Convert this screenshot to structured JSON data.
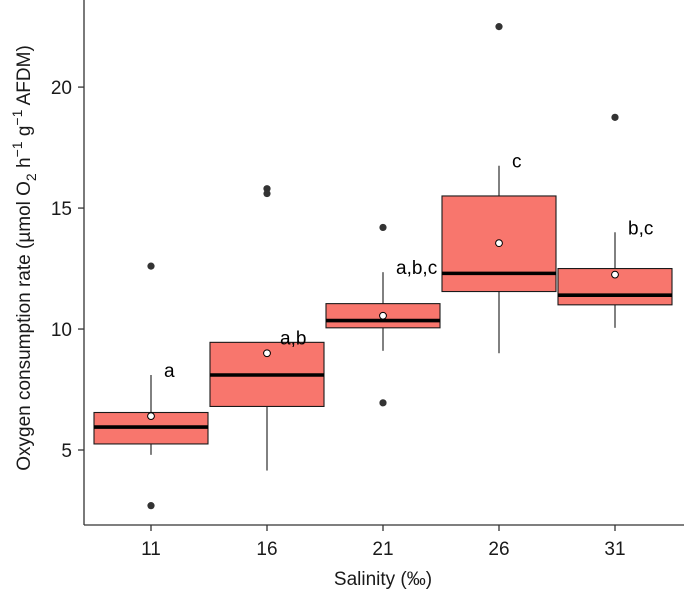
{
  "chart_data": {
    "type": "box",
    "xlabel": "Salinity (‰)",
    "ylabel_main": "Oxygen consumption rate (µmol O",
    "ylabel_sub1": "2",
    "ylabel_mid": " h",
    "ylabel_sup1": "−1",
    "ylabel_mid2": " g",
    "ylabel_sup2": "−1",
    "ylabel_end": " AFDM)",
    "categories": [
      "11",
      "16",
      "21",
      "26",
      "31"
    ],
    "ylim": [
      1.9,
      23.6
    ],
    "yticks": [
      5,
      10,
      15,
      20
    ],
    "ytick_labels": [
      "5",
      "10",
      "15",
      "20"
    ],
    "grid": false,
    "colors": {
      "box_fill": "#F8766D",
      "box_stroke": "#1a1a1a",
      "median": "#000000",
      "outlier": "#333333",
      "mean_fill": "#ffffff"
    },
    "boxes": [
      {
        "category": "11",
        "whisker_low": 4.8,
        "q1": 5.25,
        "median": 5.95,
        "q3": 6.55,
        "whisker_high": 8.1,
        "mean": 6.4,
        "outliers": [
          12.6,
          2.7
        ],
        "label": "a"
      },
      {
        "category": "16",
        "whisker_low": 4.15,
        "q1": 6.8,
        "median": 8.1,
        "q3": 9.45,
        "whisker_high": 9.45,
        "mean": 9.0,
        "outliers": [
          15.8,
          15.6
        ],
        "label": "a,b"
      },
      {
        "category": "21",
        "whisker_low": 9.1,
        "q1": 10.05,
        "median": 10.35,
        "q3": 11.05,
        "whisker_high": 12.35,
        "mean": 10.55,
        "outliers": [
          14.2,
          6.95
        ],
        "label": "a,b,c"
      },
      {
        "category": "26",
        "whisker_low": 9.0,
        "q1": 11.55,
        "median": 12.3,
        "q3": 15.5,
        "whisker_high": 16.75,
        "mean": 13.55,
        "outliers": [
          22.5
        ],
        "label": "c"
      },
      {
        "category": "31",
        "whisker_low": 10.05,
        "q1": 11.0,
        "median": 11.4,
        "q3": 12.5,
        "whisker_high": 14.0,
        "mean": 12.25,
        "outliers": [
          18.75
        ],
        "label": "b,c"
      }
    ]
  }
}
